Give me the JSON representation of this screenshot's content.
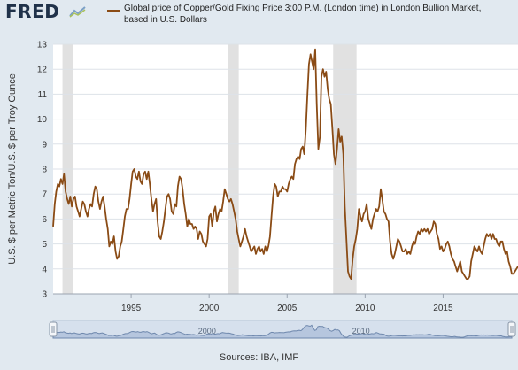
{
  "header": {
    "logo_text": "FRED",
    "logo_icon": "chart-trend-icon",
    "series_title": "Global price of Copper/Gold Fixing Price 3:00 P.M. (London time) in London Bullion Market, based in U.S. Dollars"
  },
  "footer": {
    "sources": "Sources: IBA, IMF"
  },
  "colors": {
    "line": "#8a4b15",
    "recession": "#e1e1e1",
    "plot_bg": "#ffffff",
    "page_bg": "#e1e9f0",
    "grid": "#dde2e8",
    "navigator_fill": "#b6c6de",
    "navigator_line": "#6f88ad"
  },
  "chart_data": {
    "type": "line",
    "title": "Global price of Copper/Gold Fixing Price 3:00 P.M. (London time) in London Bullion Market, based in U.S. Dollars",
    "xlabel": "",
    "ylabel": "U.S. $ per Metric Ton/U.S. $ per Troy Ounce",
    "xlim": [
      1990.0,
      2019.8
    ],
    "ylim": [
      3,
      13
    ],
    "x_ticks": [
      "1995",
      "2000",
      "2005",
      "2010",
      "2015"
    ],
    "y_ticks": [
      "3",
      "4",
      "5",
      "6",
      "7",
      "8",
      "9",
      "10",
      "11",
      "12",
      "13"
    ],
    "grid": true,
    "recessions": [
      [
        1990.6,
        1991.25
      ],
      [
        2001.2,
        2001.9
      ],
      [
        2007.95,
        2009.45
      ]
    ],
    "navigator_labels": [
      "2000",
      "2010"
    ],
    "series": [
      {
        "name": "Global price of Copper/Gold Fixing Price 3:00 P.M. (London time) in London Bullion Market, based in U.S. Dollars",
        "points": [
          [
            1990.0,
            5.7
          ],
          [
            1990.1,
            6.6
          ],
          [
            1990.2,
            7.1
          ],
          [
            1990.3,
            7.4
          ],
          [
            1990.4,
            7.3
          ],
          [
            1990.5,
            7.6
          ],
          [
            1990.6,
            7.4
          ],
          [
            1990.7,
            7.8
          ],
          [
            1990.8,
            7.1
          ],
          [
            1990.9,
            6.8
          ],
          [
            1991.0,
            6.6
          ],
          [
            1991.1,
            6.9
          ],
          [
            1991.2,
            6.5
          ],
          [
            1991.3,
            6.8
          ],
          [
            1991.4,
            6.9
          ],
          [
            1991.5,
            6.5
          ],
          [
            1991.6,
            6.3
          ],
          [
            1991.7,
            6.1
          ],
          [
            1991.8,
            6.4
          ],
          [
            1991.9,
            6.7
          ],
          [
            1992.0,
            6.6
          ],
          [
            1992.1,
            6.3
          ],
          [
            1992.2,
            6.1
          ],
          [
            1992.3,
            6.4
          ],
          [
            1992.4,
            6.6
          ],
          [
            1992.5,
            6.5
          ],
          [
            1992.6,
            7.0
          ],
          [
            1992.7,
            7.3
          ],
          [
            1992.8,
            7.2
          ],
          [
            1992.9,
            6.7
          ],
          [
            1993.0,
            6.4
          ],
          [
            1993.1,
            6.7
          ],
          [
            1993.2,
            6.9
          ],
          [
            1993.3,
            6.5
          ],
          [
            1993.4,
            6.0
          ],
          [
            1993.5,
            5.6
          ],
          [
            1993.6,
            4.9
          ],
          [
            1993.7,
            5.1
          ],
          [
            1993.8,
            5.0
          ],
          [
            1993.9,
            5.3
          ],
          [
            1994.0,
            4.7
          ],
          [
            1994.1,
            4.4
          ],
          [
            1994.2,
            4.5
          ],
          [
            1994.3,
            4.9
          ],
          [
            1994.4,
            5.1
          ],
          [
            1994.5,
            5.6
          ],
          [
            1994.6,
            6.1
          ],
          [
            1994.7,
            6.4
          ],
          [
            1994.8,
            6.4
          ],
          [
            1994.9,
            6.8
          ],
          [
            1995.0,
            7.4
          ],
          [
            1995.1,
            7.9
          ],
          [
            1995.2,
            8.0
          ],
          [
            1995.3,
            7.7
          ],
          [
            1995.4,
            7.6
          ],
          [
            1995.5,
            7.9
          ],
          [
            1995.6,
            7.5
          ],
          [
            1995.7,
            7.4
          ],
          [
            1995.8,
            7.8
          ],
          [
            1995.9,
            7.9
          ],
          [
            1996.0,
            7.6
          ],
          [
            1996.1,
            7.9
          ],
          [
            1996.2,
            7.4
          ],
          [
            1996.3,
            6.8
          ],
          [
            1996.4,
            6.3
          ],
          [
            1996.5,
            6.6
          ],
          [
            1996.6,
            6.8
          ],
          [
            1996.7,
            5.9
          ],
          [
            1996.8,
            5.3
          ],
          [
            1996.9,
            5.2
          ],
          [
            1997.0,
            5.5
          ],
          [
            1997.1,
            5.9
          ],
          [
            1997.2,
            6.4
          ],
          [
            1997.3,
            6.9
          ],
          [
            1997.4,
            7.0
          ],
          [
            1997.5,
            6.8
          ],
          [
            1997.6,
            6.3
          ],
          [
            1997.7,
            6.2
          ],
          [
            1997.8,
            6.6
          ],
          [
            1997.9,
            6.5
          ],
          [
            1998.0,
            7.3
          ],
          [
            1998.1,
            7.7
          ],
          [
            1998.2,
            7.6
          ],
          [
            1998.3,
            7.2
          ],
          [
            1998.4,
            6.6
          ],
          [
            1998.5,
            6.2
          ],
          [
            1998.6,
            5.7
          ],
          [
            1998.7,
            6.0
          ],
          [
            1998.8,
            5.8
          ],
          [
            1998.9,
            5.8
          ],
          [
            1999.0,
            5.6
          ],
          [
            1999.1,
            5.7
          ],
          [
            1999.2,
            5.6
          ],
          [
            1999.3,
            5.2
          ],
          [
            1999.4,
            5.5
          ],
          [
            1999.5,
            5.4
          ],
          [
            1999.6,
            5.1
          ],
          [
            1999.7,
            5.0
          ],
          [
            1999.8,
            4.9
          ],
          [
            1999.9,
            5.2
          ],
          [
            2000.0,
            6.1
          ],
          [
            2000.1,
            6.2
          ],
          [
            2000.2,
            5.7
          ],
          [
            2000.3,
            6.3
          ],
          [
            2000.4,
            6.5
          ],
          [
            2000.5,
            5.9
          ],
          [
            2000.6,
            6.2
          ],
          [
            2000.7,
            6.4
          ],
          [
            2000.8,
            6.3
          ],
          [
            2000.9,
            6.7
          ],
          [
            2001.0,
            7.2
          ],
          [
            2001.1,
            7.0
          ],
          [
            2001.2,
            6.8
          ],
          [
            2001.3,
            6.7
          ],
          [
            2001.4,
            6.8
          ],
          [
            2001.5,
            6.6
          ],
          [
            2001.6,
            6.3
          ],
          [
            2001.7,
            6.0
          ],
          [
            2001.8,
            5.5
          ],
          [
            2001.9,
            5.2
          ],
          [
            2002.0,
            4.9
          ],
          [
            2002.1,
            5.1
          ],
          [
            2002.2,
            5.3
          ],
          [
            2002.3,
            5.6
          ],
          [
            2002.4,
            5.3
          ],
          [
            2002.5,
            5.1
          ],
          [
            2002.6,
            4.9
          ],
          [
            2002.7,
            4.7
          ],
          [
            2002.8,
            4.8
          ],
          [
            2002.9,
            4.9
          ],
          [
            2003.0,
            4.6
          ],
          [
            2003.1,
            4.8
          ],
          [
            2003.2,
            4.9
          ],
          [
            2003.3,
            4.7
          ],
          [
            2003.4,
            4.8
          ],
          [
            2003.5,
            4.6
          ],
          [
            2003.6,
            4.9
          ],
          [
            2003.7,
            4.7
          ],
          [
            2003.8,
            4.9
          ],
          [
            2003.9,
            5.3
          ],
          [
            2004.0,
            6.1
          ],
          [
            2004.1,
            6.9
          ],
          [
            2004.2,
            7.4
          ],
          [
            2004.3,
            7.3
          ],
          [
            2004.4,
            6.9
          ],
          [
            2004.5,
            7.1
          ],
          [
            2004.6,
            7.1
          ],
          [
            2004.7,
            7.3
          ],
          [
            2004.8,
            7.2
          ],
          [
            2004.9,
            7.2
          ],
          [
            2005.0,
            7.1
          ],
          [
            2005.1,
            7.4
          ],
          [
            2005.2,
            7.6
          ],
          [
            2005.3,
            7.7
          ],
          [
            2005.4,
            7.6
          ],
          [
            2005.5,
            8.2
          ],
          [
            2005.6,
            8.4
          ],
          [
            2005.7,
            8.5
          ],
          [
            2005.8,
            8.4
          ],
          [
            2005.9,
            8.8
          ],
          [
            2006.0,
            8.9
          ],
          [
            2006.1,
            8.6
          ],
          [
            2006.2,
            9.6
          ],
          [
            2006.3,
            11.0
          ],
          [
            2006.4,
            12.2
          ],
          [
            2006.5,
            12.6
          ],
          [
            2006.6,
            12.3
          ],
          [
            2006.7,
            12.0
          ],
          [
            2006.8,
            12.8
          ],
          [
            2006.9,
            10.6
          ],
          [
            2007.0,
            8.8
          ],
          [
            2007.1,
            9.3
          ],
          [
            2007.2,
            11.7
          ],
          [
            2007.3,
            12.0
          ],
          [
            2007.4,
            11.7
          ],
          [
            2007.5,
            11.9
          ],
          [
            2007.6,
            11.2
          ],
          [
            2007.7,
            10.8
          ],
          [
            2007.8,
            10.6
          ],
          [
            2007.9,
            9.6
          ],
          [
            2008.0,
            8.6
          ],
          [
            2008.1,
            8.2
          ],
          [
            2008.2,
            8.8
          ],
          [
            2008.3,
            9.6
          ],
          [
            2008.4,
            9.1
          ],
          [
            2008.5,
            9.3
          ],
          [
            2008.6,
            8.6
          ],
          [
            2008.7,
            6.5
          ],
          [
            2008.8,
            5.2
          ],
          [
            2008.9,
            3.9
          ],
          [
            2009.0,
            3.7
          ],
          [
            2009.1,
            3.6
          ],
          [
            2009.2,
            4.4
          ],
          [
            2009.3,
            4.9
          ],
          [
            2009.4,
            5.2
          ],
          [
            2009.5,
            5.6
          ],
          [
            2009.6,
            6.4
          ],
          [
            2009.7,
            6.1
          ],
          [
            2009.8,
            5.9
          ],
          [
            2009.9,
            6.2
          ],
          [
            2010.0,
            6.3
          ],
          [
            2010.1,
            6.6
          ],
          [
            2010.2,
            6.0
          ],
          [
            2010.3,
            5.8
          ],
          [
            2010.4,
            5.6
          ],
          [
            2010.5,
            6.0
          ],
          [
            2010.6,
            6.2
          ],
          [
            2010.7,
            6.4
          ],
          [
            2010.8,
            6.3
          ],
          [
            2010.9,
            6.5
          ],
          [
            2011.0,
            7.2
          ],
          [
            2011.1,
            6.8
          ],
          [
            2011.2,
            6.3
          ],
          [
            2011.3,
            6.2
          ],
          [
            2011.4,
            6.0
          ],
          [
            2011.5,
            5.9
          ],
          [
            2011.6,
            5.1
          ],
          [
            2011.7,
            4.6
          ],
          [
            2011.8,
            4.4
          ],
          [
            2011.9,
            4.6
          ],
          [
            2012.0,
            4.9
          ],
          [
            2012.1,
            5.2
          ],
          [
            2012.2,
            5.1
          ],
          [
            2012.3,
            4.9
          ],
          [
            2012.4,
            4.7
          ],
          [
            2012.5,
            4.7
          ],
          [
            2012.6,
            4.8
          ],
          [
            2012.7,
            4.6
          ],
          [
            2012.8,
            4.7
          ],
          [
            2012.9,
            4.6
          ],
          [
            2013.0,
            4.9
          ],
          [
            2013.1,
            5.1
          ],
          [
            2013.2,
            5.0
          ],
          [
            2013.3,
            5.3
          ],
          [
            2013.4,
            5.5
          ],
          [
            2013.5,
            5.4
          ],
          [
            2013.6,
            5.6
          ],
          [
            2013.7,
            5.5
          ],
          [
            2013.8,
            5.6
          ],
          [
            2013.9,
            5.5
          ],
          [
            2014.0,
            5.6
          ],
          [
            2014.1,
            5.4
          ],
          [
            2014.2,
            5.5
          ],
          [
            2014.3,
            5.6
          ],
          [
            2014.4,
            5.9
          ],
          [
            2014.5,
            5.8
          ],
          [
            2014.6,
            5.4
          ],
          [
            2014.7,
            5.2
          ],
          [
            2014.8,
            4.8
          ],
          [
            2014.9,
            4.9
          ],
          [
            2015.0,
            4.7
          ],
          [
            2015.1,
            4.8
          ],
          [
            2015.2,
            5.0
          ],
          [
            2015.3,
            5.1
          ],
          [
            2015.4,
            4.9
          ],
          [
            2015.5,
            4.6
          ],
          [
            2015.6,
            4.4
          ],
          [
            2015.7,
            4.3
          ],
          [
            2015.8,
            4.1
          ],
          [
            2015.9,
            3.9
          ],
          [
            2016.0,
            4.1
          ],
          [
            2016.1,
            4.3
          ],
          [
            2016.2,
            3.9
          ],
          [
            2016.3,
            3.8
          ],
          [
            2016.4,
            3.7
          ],
          [
            2016.5,
            3.6
          ],
          [
            2016.6,
            3.6
          ],
          [
            2016.7,
            3.7
          ],
          [
            2016.8,
            4.3
          ],
          [
            2016.9,
            4.6
          ],
          [
            2017.0,
            4.9
          ],
          [
            2017.1,
            4.8
          ],
          [
            2017.2,
            4.7
          ],
          [
            2017.3,
            4.9
          ],
          [
            2017.4,
            4.7
          ],
          [
            2017.5,
            4.6
          ],
          [
            2017.6,
            4.9
          ],
          [
            2017.7,
            5.2
          ],
          [
            2017.8,
            5.4
          ],
          [
            2017.9,
            5.3
          ],
          [
            2018.0,
            5.4
          ],
          [
            2018.1,
            5.2
          ],
          [
            2018.2,
            5.4
          ],
          [
            2018.3,
            5.2
          ],
          [
            2018.4,
            5.2
          ],
          [
            2018.5,
            5.0
          ],
          [
            2018.6,
            4.9
          ],
          [
            2018.7,
            5.1
          ],
          [
            2018.8,
            5.1
          ],
          [
            2018.9,
            4.8
          ],
          [
            2019.0,
            4.6
          ],
          [
            2019.1,
            4.7
          ],
          [
            2019.2,
            4.3
          ],
          [
            2019.3,
            4.1
          ],
          [
            2019.4,
            3.8
          ],
          [
            2019.5,
            3.8
          ],
          [
            2019.6,
            3.9
          ],
          [
            2019.7,
            4.0
          ],
          [
            2019.8,
            4.1
          ]
        ]
      }
    ]
  }
}
